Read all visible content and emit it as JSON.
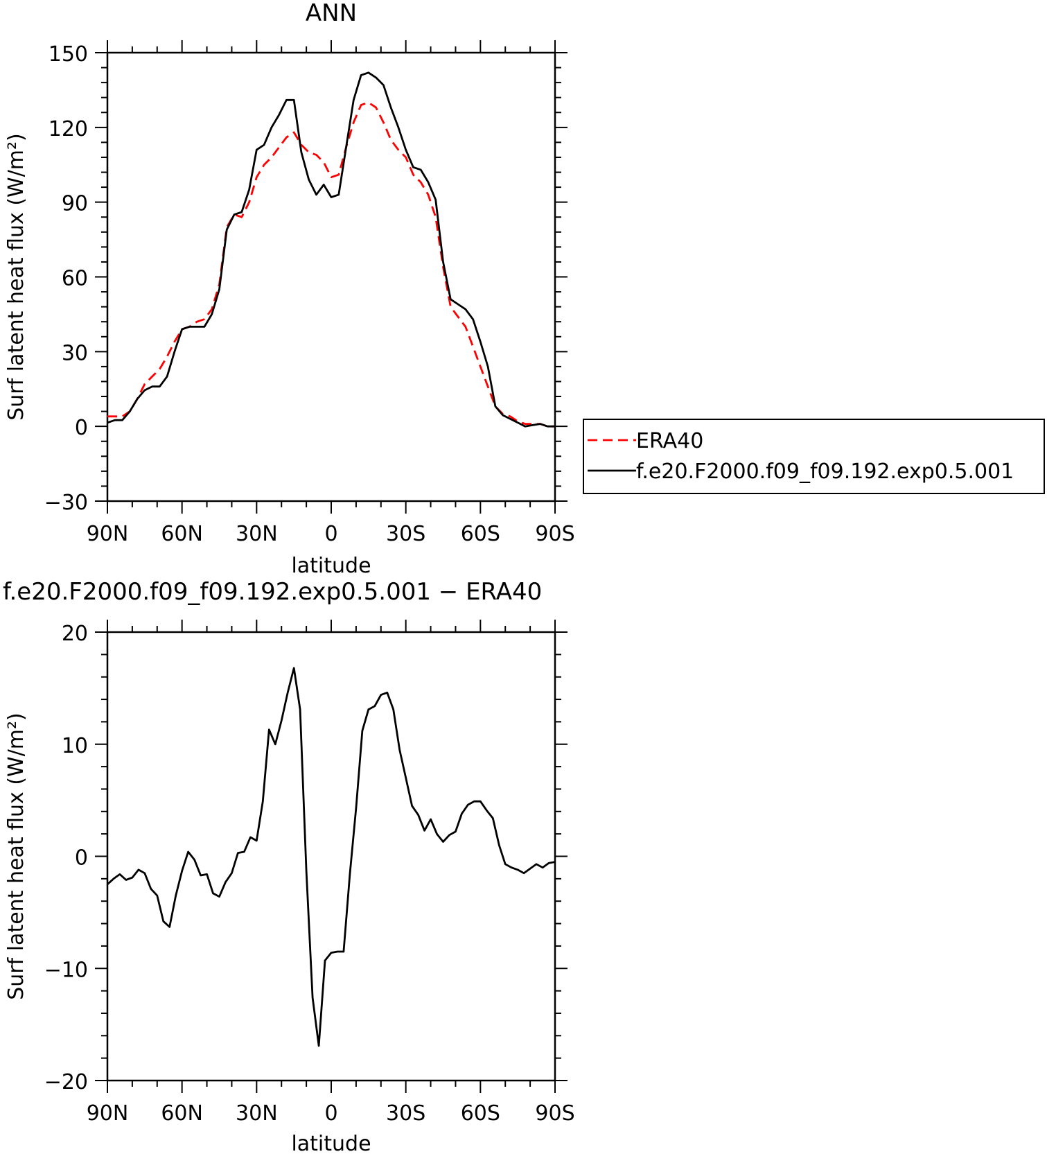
{
  "chart_data": [
    {
      "type": "line",
      "title": "ANN",
      "xlabel": "latitude",
      "ylabel": "Surf latent heat flux (W/m²)",
      "xlim": [
        90,
        -90
      ],
      "ylim": [
        -30,
        150
      ],
      "xticks": [
        90,
        60,
        30,
        0,
        -30,
        -60,
        -90
      ],
      "xtick_labels": [
        "90N",
        "60N",
        "30N",
        "0",
        "30S",
        "60S",
        "90S"
      ],
      "yticks": [
        -30,
        0,
        30,
        60,
        90,
        120,
        150
      ],
      "ytick_labels": [
        "−30",
        "0",
        "30",
        "60",
        "90",
        "120",
        "150"
      ],
      "legend": "outside-right",
      "series": [
        {
          "name": "ERA40",
          "color": "#ff0000",
          "dash": "dashed",
          "x": [
            90,
            87,
            84,
            81,
            78,
            75,
            72,
            69,
            66,
            63,
            60,
            57,
            54,
            51,
            48,
            45,
            42,
            39,
            36,
            33,
            30,
            27,
            24,
            21,
            18,
            15,
            12,
            9,
            6,
            3,
            0,
            -3,
            -6,
            -9,
            -12,
            -15,
            -18,
            -21,
            -24,
            -27,
            -30,
            -33,
            -36,
            -39,
            -42,
            -45,
            -48,
            -51,
            -54,
            -57,
            -60,
            -63,
            -66,
            -69,
            -72,
            -75,
            -78,
            -81,
            -84,
            -87,
            -90
          ],
          "y": [
            4,
            4,
            4,
            6,
            11,
            17,
            20,
            23,
            28,
            34,
            39,
            40,
            42,
            43,
            47,
            57,
            80,
            85,
            84,
            90,
            100,
            105,
            108,
            112,
            116,
            118,
            113,
            110,
            109,
            106,
            100,
            101,
            112,
            122,
            129,
            130,
            128,
            122,
            115,
            111,
            108,
            101,
            98,
            93,
            84,
            64,
            48,
            44,
            40,
            32,
            24,
            16,
            8,
            5,
            4,
            2,
            1,
            1,
            1,
            0,
            0
          ]
        },
        {
          "name": "f.e20.F2000.f09_f09.192.exp0.5.001",
          "color": "#000000",
          "dash": "solid",
          "x": [
            90,
            87,
            84,
            81,
            78,
            75,
            72,
            69,
            66,
            63,
            60,
            57,
            54,
            51,
            48,
            45,
            42,
            39,
            36,
            33,
            30,
            27,
            24,
            21,
            18,
            15,
            12,
            9,
            6,
            3,
            0,
            -3,
            -6,
            -9,
            -12,
            -15,
            -18,
            -21,
            -24,
            -27,
            -30,
            -33,
            -36,
            -39,
            -42,
            -45,
            -48,
            -51,
            -54,
            -57,
            -60,
            -63,
            -66,
            -69,
            -72,
            -75,
            -78,
            -81,
            -84,
            -87,
            -90
          ],
          "y": [
            1.5,
            2.5,
            2.5,
            6,
            11,
            14.5,
            16,
            16,
            20,
            30,
            39,
            40,
            40,
            40,
            45,
            55,
            79,
            85,
            86,
            95,
            111,
            113,
            120,
            125,
            131,
            131,
            110,
            99,
            93,
            97,
            92,
            93,
            112,
            131,
            141,
            142,
            140,
            137,
            128,
            120,
            111,
            104,
            103,
            98,
            91,
            66,
            51,
            49,
            47,
            43,
            34,
            24,
            8,
            4.5,
            3,
            1.5,
            0,
            0.5,
            1,
            0,
            0
          ]
        }
      ]
    },
    {
      "type": "line",
      "title": "f.e20.F2000.f09_f09.192.exp0.5.001 − ERA40",
      "xlabel": "latitude",
      "ylabel": "Surf latent heat flux (W/m²)",
      "xlim": [
        90,
        -90
      ],
      "ylim": [
        -20,
        20
      ],
      "xticks": [
        90,
        60,
        30,
        0,
        -30,
        -60,
        -90
      ],
      "xtick_labels": [
        "90N",
        "60N",
        "30N",
        "0",
        "30S",
        "60S",
        "90S"
      ],
      "yticks": [
        -20,
        -10,
        0,
        10,
        20
      ],
      "ytick_labels": [
        "−20",
        "−10",
        "0",
        "10",
        "20"
      ],
      "series": [
        {
          "color": "#000000",
          "dash": "solid",
          "x": [
            90,
            87.5,
            85,
            82.5,
            80,
            77.5,
            75,
            72.5,
            70,
            67.5,
            65,
            62.5,
            60,
            57.5,
            55,
            52.5,
            50,
            47.5,
            45,
            42.5,
            40,
            37.5,
            35,
            32.5,
            30,
            27.5,
            25,
            22.5,
            20,
            17.5,
            15,
            12.5,
            10,
            7.5,
            5,
            2.5,
            0,
            -2.5,
            -5,
            -7.5,
            -10,
            -12.5,
            -15,
            -17.5,
            -20,
            -22.5,
            -25,
            -27.5,
            -30,
            -32.5,
            -35,
            -37.5,
            -40,
            -42.5,
            -45,
            -47.5,
            -50,
            -52.5,
            -55,
            -57.5,
            -60,
            -62.5,
            -65,
            -67.5,
            -70,
            -72.5,
            -75,
            -77.5,
            -80,
            -82.5,
            -85,
            -87.5,
            -90
          ],
          "y": [
            -2.5,
            -2,
            -1.6,
            -2.1,
            -1.9,
            -1.2,
            -1.5,
            -2.9,
            -3.5,
            -5.8,
            -6.3,
            -3.5,
            -1.3,
            0.4,
            -0.3,
            -1.7,
            -1.6,
            -3.3,
            -3.6,
            -2.3,
            -1.5,
            0.3,
            0.4,
            1.7,
            1.4,
            4.9,
            11.3,
            10,
            12.1,
            14.6,
            16.8,
            13.1,
            -1.3,
            -12.6,
            -16.9,
            -9.3,
            -8.6,
            -8.5,
            -8.5,
            -1.6,
            4.3,
            11.2,
            13.1,
            13.4,
            14.4,
            14.6,
            13.1,
            9.5,
            7,
            4.5,
            3.7,
            2.3,
            3.3,
            2,
            1.3,
            1.9,
            2.2,
            3.8,
            4.6,
            4.9,
            4.9,
            4.1,
            3.4,
            1,
            -0.7,
            -1,
            -1.2,
            -1.5,
            -1.1,
            -0.7,
            -1,
            -0.6,
            -0.5
          ]
        }
      ]
    }
  ]
}
